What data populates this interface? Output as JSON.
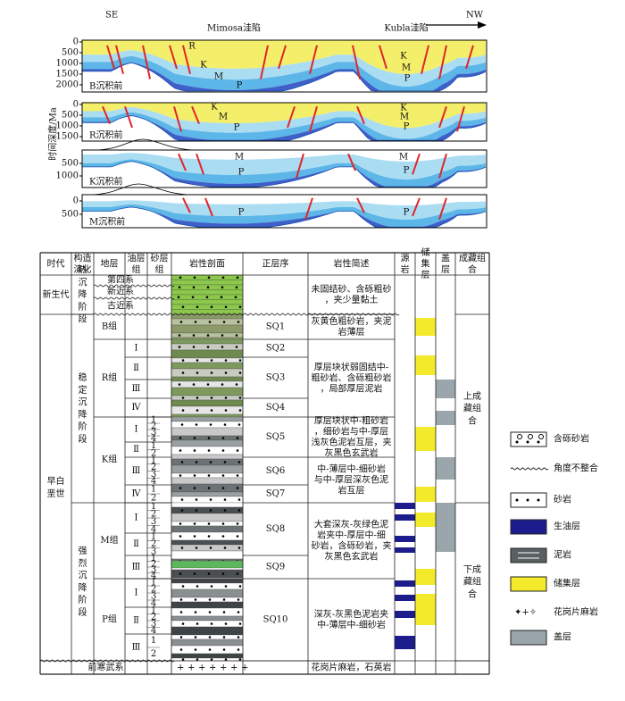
{
  "cross_section": {
    "direction_left": "SE",
    "direction_right": "NW",
    "basins": [
      "Mimosa洼陷",
      "Kubla洼陷"
    ],
    "axis_label": "时间深度/Ma",
    "panels": [
      {
        "label": "B沉积前",
        "ticks": [
          0,
          500,
          1000,
          1500,
          2000
        ],
        "layers": [
          "R",
          "K",
          "M",
          "P",
          "K",
          "M",
          "P"
        ]
      },
      {
        "label": "R沉积前",
        "ticks": [
          0,
          500,
          1000,
          1500
        ],
        "layers": [
          "K",
          "M",
          "P",
          "K",
          "M",
          "P"
        ]
      },
      {
        "label": "K沉积前",
        "ticks": [
          500,
          1000
        ],
        "layers": [
          "M",
          "P",
          "M",
          "P"
        ]
      },
      {
        "label": "M沉积前",
        "ticks": [
          0,
          500
        ],
        "layers": [
          "P",
          "P"
        ]
      }
    ]
  },
  "table": {
    "headers": [
      "时代",
      "构造演化",
      "地层",
      "油层组",
      "砂层组",
      "岩性剖面",
      "正层序",
      "岩性简述",
      "源岩",
      "储集层",
      "盖层",
      "成藏组合"
    ],
    "eras": [
      "新生代",
      "早白垩世"
    ],
    "tectonic_stages": [
      "热沉降阶段",
      "稳定沉降阶段",
      "强烈沉降阶段"
    ],
    "cenozoic_strata": [
      "第四系",
      "新近系",
      "古近系"
    ],
    "formations": [
      {
        "name": "B组",
        "oil_groups": []
      },
      {
        "name": "R组",
        "oil_groups": [
          {
            "name": "Ⅰ",
            "sand_layers": []
          },
          {
            "name": "Ⅱ",
            "sand_layers": []
          },
          {
            "name": "Ⅲ",
            "sand_layers": []
          },
          {
            "name": "Ⅳ",
            "sand_layers": []
          }
        ]
      },
      {
        "name": "K组",
        "oil_groups": [
          {
            "name": "Ⅰ",
            "sand_layers": [
              1,
              2,
              3,
              4
            ]
          },
          {
            "name": "Ⅱ",
            "sand_layers": [
              1,
              2
            ]
          },
          {
            "name": "Ⅲ",
            "sand_layers": [
              1,
              2,
              3,
              4
            ]
          },
          {
            "name": "Ⅳ",
            "sand_layers": [
              1,
              2
            ]
          }
        ]
      },
      {
        "name": "M组",
        "oil_groups": [
          {
            "name": "Ⅰ",
            "sand_layers": [
              1,
              2,
              3,
              4
            ]
          },
          {
            "name": "Ⅱ",
            "sand_layers": [
              1,
              2,
              3
            ]
          },
          {
            "name": "Ⅲ",
            "sand_layers": [
              1,
              2,
              3,
              4
            ]
          }
        ]
      },
      {
        "name": "P组",
        "oil_groups": [
          {
            "name": "Ⅰ",
            "sand_layers": [
              1,
              2,
              3,
              4
            ]
          },
          {
            "name": "Ⅱ",
            "sand_layers": [
              1,
              2,
              3,
              4
            ]
          },
          {
            "name": "Ⅲ",
            "sand_layers": [
              1,
              2
            ]
          }
        ]
      }
    ],
    "sequences": [
      "SQ1",
      "SQ2",
      "SQ3",
      "SQ4",
      "SQ5",
      "SQ6",
      "SQ7",
      "SQ8",
      "SQ9",
      "SQ10"
    ],
    "descriptions": [
      "未固结砂、含砾粗砂，夹少量黏土",
      "灰黄色粗砂岩，夹泥岩薄层",
      "厚层块状弱固结中-粗砂岩、含砾粗砂岩，局部厚层泥岩",
      "厚层块状中-粗砂岩，细砂岩与中-厚层浅灰色泥岩互层，夹灰黑色玄武岩",
      "中-薄层中-细砂岩与中-厚层深灰色泥岩互层",
      "大套深灰-灰绿色泥岩夹中-厚层中-细砂岩，含砾砂岩，夹灰黑色玄武岩",
      "深灰-灰黑色泥岩夹中-薄层中-细砂岩"
    ],
    "basement": "前寒武系",
    "basement_description": "花岗片麻岩，石英岩",
    "plays": [
      "上成藏组合",
      "下成藏组合"
    ]
  },
  "legend": [
    "含砾砂岩",
    "角度不整合",
    "砂岩",
    "生油层",
    "泥岩",
    "储集层",
    "花岗片麻岩",
    "盖层"
  ]
}
